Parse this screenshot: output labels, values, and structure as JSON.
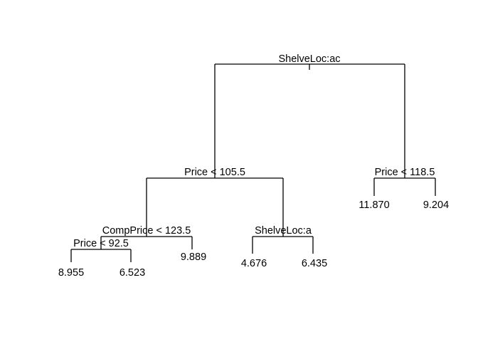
{
  "tree": {
    "root": {
      "label": "ShelveLoc:ac",
      "left": {
        "label": "Price < 105.5",
        "left": {
          "label": "CompPrice < 123.5",
          "left": {
            "label": "Price < 92.5",
            "left": {
              "leaf": "8.955"
            },
            "right": {
              "leaf": "6.523"
            }
          },
          "right": {
            "leaf": "9.889"
          }
        },
        "right": {
          "label": "ShelveLoc:a",
          "left": {
            "leaf": "4.676"
          },
          "right": {
            "leaf": "6.435"
          }
        }
      },
      "right": {
        "label": "Price < 118.5",
        "left": {
          "leaf": "11.870"
        },
        "right": {
          "leaf": "9.204"
        }
      }
    }
  }
}
